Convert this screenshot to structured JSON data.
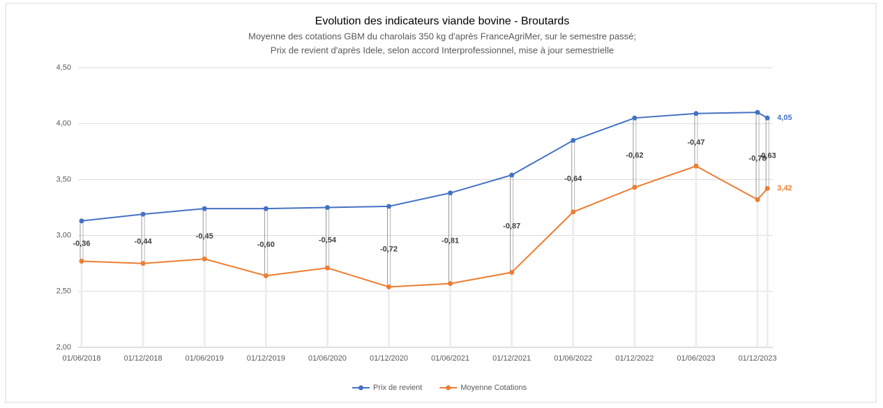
{
  "chart_data": {
    "type": "line",
    "title": "Evolution des indicateurs viande bovine - Broutards",
    "subtitle": [
      "Moyenne des cotations GBM du charolais 350 kg d'après FranceAgriMer, sur le semestre passé;",
      "Prix de revient d'après Idele, selon accord Interprofessionnel, mise à jour semestrielle"
    ],
    "categories": [
      "01/06/2018",
      "01/12/2018",
      "01/06/2019",
      "01/12/2019",
      "01/06/2020",
      "01/12/2020",
      "01/06/2021",
      "01/12/2021",
      "01/06/2022",
      "01/12/2022",
      "01/06/2023",
      "01/12/2023",
      null
    ],
    "series": [
      {
        "name": "Prix de revient",
        "color": "#4472c4",
        "values": [
          3.13,
          3.19,
          3.24,
          3.24,
          3.25,
          3.26,
          3.38,
          3.54,
          3.85,
          4.05,
          4.09,
          4.1,
          4.05
        ],
        "value_labels": [
          null,
          null,
          null,
          null,
          null,
          null,
          null,
          null,
          null,
          null,
          null,
          null,
          "4,05"
        ]
      },
      {
        "name": "Moyenne Cotations",
        "color": "#ed7d31",
        "values": [
          2.77,
          2.75,
          2.79,
          2.64,
          2.71,
          2.54,
          2.57,
          2.67,
          3.21,
          3.43,
          3.62,
          3.32,
          3.42
        ],
        "value_labels": [
          null,
          null,
          null,
          null,
          null,
          null,
          null,
          null,
          null,
          null,
          null,
          null,
          "3,42"
        ]
      }
    ],
    "differences": {
      "values": [
        -0.36,
        -0.44,
        -0.45,
        -0.6,
        -0.54,
        -0.72,
        -0.81,
        -0.87,
        -0.64,
        -0.62,
        -0.47,
        -0.78,
        -0.63
      ],
      "value_labels": [
        "-0,36",
        "-0,44",
        "-0,45",
        "-0,60",
        "-0,54",
        "-0,72",
        "-0,81",
        "-0,87",
        "-0,64",
        "-0,62",
        "-0,47",
        "-0,78",
        "-0,63"
      ]
    },
    "ylim": [
      2.0,
      4.5
    ],
    "yticks": [
      {
        "value": 2.0,
        "label": "2,00"
      },
      {
        "value": 2.5,
        "label": "2,50"
      },
      {
        "value": 3.0,
        "label": "3,00"
      },
      {
        "value": 3.5,
        "label": "3,50"
      },
      {
        "value": 4.0,
        "label": "4,00"
      },
      {
        "value": 4.5,
        "label": "4,50"
      }
    ],
    "grid": true,
    "legend": "bottom"
  }
}
